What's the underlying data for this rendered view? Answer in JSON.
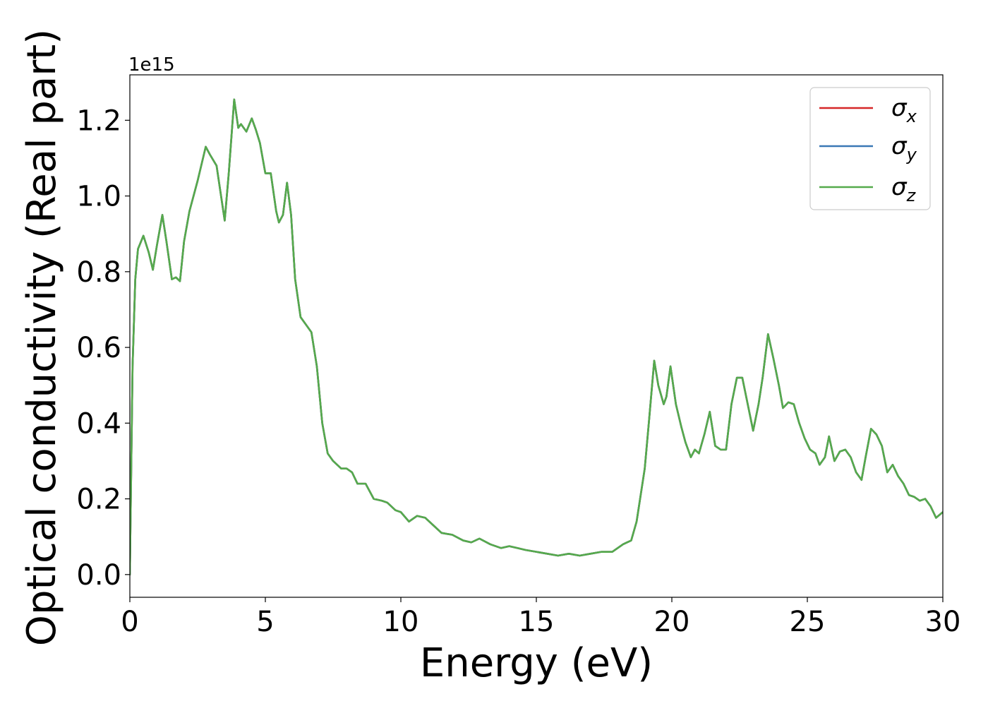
{
  "chart_data": {
    "type": "line",
    "title": "",
    "xlabel": "Energy (eV)",
    "ylabel": "Optical conductivity (Real part)",
    "y_offset_label": "1e15",
    "xlim": [
      0,
      30
    ],
    "ylim": [
      -0.06,
      1.32
    ],
    "x_ticks": [
      0,
      5,
      10,
      15,
      20,
      25,
      30
    ],
    "x_tick_labels": [
      "0",
      "5",
      "10",
      "15",
      "20",
      "25",
      "30"
    ],
    "y_ticks": [
      0.0,
      0.2,
      0.4,
      0.6,
      0.8,
      1.0,
      1.2
    ],
    "y_tick_labels": [
      "0.0",
      "0.2",
      "0.4",
      "0.6",
      "0.8",
      "1.0",
      "1.2"
    ],
    "grid": false,
    "legend_position": "top-right",
    "colors": {
      "sigma_x": "#d62728",
      "sigma_y": "#3a78b5",
      "sigma_z": "#55aa4c"
    },
    "x": [
      0,
      0.1,
      0.2,
      0.3,
      0.5,
      0.7,
      0.85,
      1.0,
      1.2,
      1.35,
      1.55,
      1.7,
      1.85,
      2.0,
      2.2,
      2.5,
      2.8,
      2.95,
      3.2,
      3.5,
      3.65,
      3.85,
      4.0,
      4.1,
      4.3,
      4.5,
      4.65,
      4.8,
      5.0,
      5.2,
      5.4,
      5.5,
      5.65,
      5.8,
      5.95,
      6.1,
      6.3,
      6.5,
      6.7,
      6.9,
      7.1,
      7.3,
      7.5,
      7.8,
      8.0,
      8.2,
      8.4,
      8.7,
      9.0,
      9.3,
      9.5,
      9.8,
      10.0,
      10.3,
      10.6,
      10.9,
      11.2,
      11.5,
      11.9,
      12.3,
      12.6,
      12.9,
      13.3,
      13.7,
      14.0,
      14.3,
      14.6,
      15.0,
      15.4,
      15.8,
      16.2,
      16.6,
      17.0,
      17.4,
      17.8,
      18.2,
      18.5,
      18.7,
      19.0,
      19.15,
      19.35,
      19.5,
      19.7,
      19.8,
      19.95,
      20.15,
      20.35,
      20.5,
      20.7,
      20.85,
      21.0,
      21.2,
      21.4,
      21.6,
      21.8,
      22.0,
      22.2,
      22.4,
      22.6,
      22.8,
      23.0,
      23.2,
      23.35,
      23.55,
      23.75,
      23.95,
      24.1,
      24.3,
      24.5,
      24.7,
      24.9,
      25.1,
      25.3,
      25.45,
      25.65,
      25.8,
      26.0,
      26.2,
      26.4,
      26.6,
      26.8,
      27.0,
      27.15,
      27.35,
      27.55,
      27.75,
      27.95,
      28.15,
      28.35,
      28.55,
      28.75,
      28.95,
      29.15,
      29.35,
      29.55,
      29.75,
      30.0
    ],
    "series": [
      {
        "name": "σx",
        "label": "σ",
        "subscript": "x",
        "color": "#d62728",
        "y": [
          0.0,
          0.55,
          0.78,
          0.86,
          0.895,
          0.85,
          0.805,
          0.87,
          0.95,
          0.88,
          0.78,
          0.785,
          0.775,
          0.88,
          0.96,
          1.04,
          1.13,
          1.11,
          1.08,
          0.935,
          1.06,
          1.255,
          1.18,
          1.19,
          1.17,
          1.205,
          1.175,
          1.14,
          1.06,
          1.06,
          0.96,
          0.93,
          0.95,
          1.035,
          0.95,
          0.78,
          0.68,
          0.66,
          0.64,
          0.55,
          0.4,
          0.32,
          0.3,
          0.28,
          0.28,
          0.27,
          0.24,
          0.24,
          0.2,
          0.195,
          0.19,
          0.17,
          0.165,
          0.14,
          0.155,
          0.15,
          0.13,
          0.11,
          0.105,
          0.09,
          0.085,
          0.095,
          0.08,
          0.07,
          0.075,
          0.07,
          0.065,
          0.06,
          0.055,
          0.05,
          0.055,
          0.05,
          0.055,
          0.06,
          0.06,
          0.08,
          0.09,
          0.14,
          0.28,
          0.4,
          0.565,
          0.5,
          0.45,
          0.47,
          0.55,
          0.45,
          0.39,
          0.35,
          0.31,
          0.33,
          0.32,
          0.37,
          0.43,
          0.34,
          0.33,
          0.33,
          0.45,
          0.52,
          0.52,
          0.45,
          0.38,
          0.45,
          0.52,
          0.635,
          0.57,
          0.5,
          0.44,
          0.455,
          0.45,
          0.4,
          0.36,
          0.33,
          0.32,
          0.29,
          0.31,
          0.365,
          0.3,
          0.325,
          0.33,
          0.31,
          0.27,
          0.25,
          0.31,
          0.385,
          0.37,
          0.34,
          0.27,
          0.29,
          0.26,
          0.24,
          0.21,
          0.205,
          0.195,
          0.2,
          0.18,
          0.15,
          0.165
        ]
      },
      {
        "name": "σy",
        "label": "σ",
        "subscript": "y",
        "color": "#3a78b5",
        "y": [
          0.0,
          0.55,
          0.78,
          0.86,
          0.895,
          0.85,
          0.805,
          0.87,
          0.95,
          0.88,
          0.78,
          0.785,
          0.775,
          0.88,
          0.96,
          1.04,
          1.13,
          1.11,
          1.08,
          0.935,
          1.06,
          1.255,
          1.18,
          1.19,
          1.17,
          1.205,
          1.175,
          1.14,
          1.06,
          1.06,
          0.96,
          0.93,
          0.95,
          1.035,
          0.95,
          0.78,
          0.68,
          0.66,
          0.64,
          0.55,
          0.4,
          0.32,
          0.3,
          0.28,
          0.28,
          0.27,
          0.24,
          0.24,
          0.2,
          0.195,
          0.19,
          0.17,
          0.165,
          0.14,
          0.155,
          0.15,
          0.13,
          0.11,
          0.105,
          0.09,
          0.085,
          0.095,
          0.08,
          0.07,
          0.075,
          0.07,
          0.065,
          0.06,
          0.055,
          0.05,
          0.055,
          0.05,
          0.055,
          0.06,
          0.06,
          0.08,
          0.09,
          0.14,
          0.28,
          0.4,
          0.565,
          0.5,
          0.45,
          0.47,
          0.55,
          0.45,
          0.39,
          0.35,
          0.31,
          0.33,
          0.32,
          0.37,
          0.43,
          0.34,
          0.33,
          0.33,
          0.45,
          0.52,
          0.52,
          0.45,
          0.38,
          0.45,
          0.52,
          0.635,
          0.57,
          0.5,
          0.44,
          0.455,
          0.45,
          0.4,
          0.36,
          0.33,
          0.32,
          0.29,
          0.31,
          0.365,
          0.3,
          0.325,
          0.33,
          0.31,
          0.27,
          0.25,
          0.31,
          0.385,
          0.37,
          0.34,
          0.27,
          0.29,
          0.26,
          0.24,
          0.21,
          0.205,
          0.195,
          0.2,
          0.18,
          0.15,
          0.165
        ]
      },
      {
        "name": "σz",
        "label": "σ",
        "subscript": "z",
        "color": "#55aa4c",
        "y": [
          0.0,
          0.55,
          0.78,
          0.86,
          0.895,
          0.85,
          0.805,
          0.87,
          0.95,
          0.88,
          0.78,
          0.785,
          0.775,
          0.88,
          0.96,
          1.04,
          1.13,
          1.11,
          1.08,
          0.935,
          1.06,
          1.255,
          1.18,
          1.19,
          1.17,
          1.205,
          1.175,
          1.14,
          1.06,
          1.06,
          0.96,
          0.93,
          0.95,
          1.035,
          0.95,
          0.78,
          0.68,
          0.66,
          0.64,
          0.55,
          0.4,
          0.32,
          0.3,
          0.28,
          0.28,
          0.27,
          0.24,
          0.24,
          0.2,
          0.195,
          0.19,
          0.17,
          0.165,
          0.14,
          0.155,
          0.15,
          0.13,
          0.11,
          0.105,
          0.09,
          0.085,
          0.095,
          0.08,
          0.07,
          0.075,
          0.07,
          0.065,
          0.06,
          0.055,
          0.05,
          0.055,
          0.05,
          0.055,
          0.06,
          0.06,
          0.08,
          0.09,
          0.14,
          0.28,
          0.4,
          0.565,
          0.5,
          0.45,
          0.47,
          0.55,
          0.45,
          0.39,
          0.35,
          0.31,
          0.33,
          0.32,
          0.37,
          0.43,
          0.34,
          0.33,
          0.33,
          0.45,
          0.52,
          0.52,
          0.45,
          0.38,
          0.45,
          0.52,
          0.635,
          0.57,
          0.5,
          0.44,
          0.455,
          0.45,
          0.4,
          0.36,
          0.33,
          0.32,
          0.29,
          0.31,
          0.365,
          0.3,
          0.325,
          0.33,
          0.31,
          0.27,
          0.25,
          0.31,
          0.385,
          0.37,
          0.34,
          0.27,
          0.29,
          0.26,
          0.24,
          0.21,
          0.205,
          0.195,
          0.2,
          0.18,
          0.15,
          0.165
        ]
      }
    ]
  }
}
